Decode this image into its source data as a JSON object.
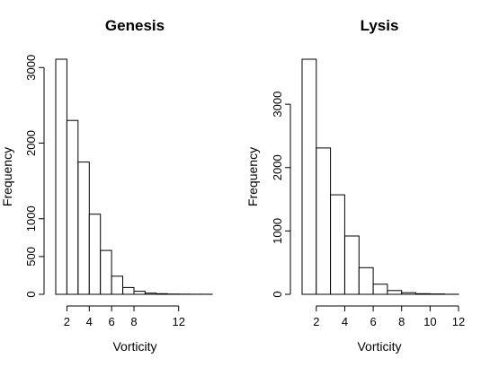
{
  "chart_data": [
    {
      "type": "bar",
      "title": "Genesis",
      "xlabel": "Vorticity",
      "ylabel": "Frequency",
      "bin_width": 1,
      "bin_start": 1,
      "values": [
        3110,
        2300,
        1750,
        1060,
        580,
        240,
        90,
        40,
        15,
        8,
        4,
        2,
        1,
        1
      ],
      "xticks": [
        2,
        4,
        6,
        8,
        12
      ],
      "yticks": [
        0,
        500,
        1000,
        2000,
        3000
      ],
      "xlim": [
        0,
        15
      ],
      "ylim": [
        0,
        3300
      ]
    },
    {
      "type": "bar",
      "title": "Lysis",
      "xlabel": "Vorticity",
      "ylabel": "Frequency",
      "bin_width": 1,
      "bin_start": 1,
      "values": [
        3710,
        2310,
        1570,
        920,
        420,
        160,
        60,
        25,
        10,
        5,
        2
      ],
      "xticks": [
        2,
        4,
        6,
        8,
        10,
        12
      ],
      "yticks": [
        0,
        1000,
        2000,
        3000
      ],
      "xlim": [
        0,
        12
      ],
      "ylim": [
        0,
        3800
      ]
    }
  ]
}
